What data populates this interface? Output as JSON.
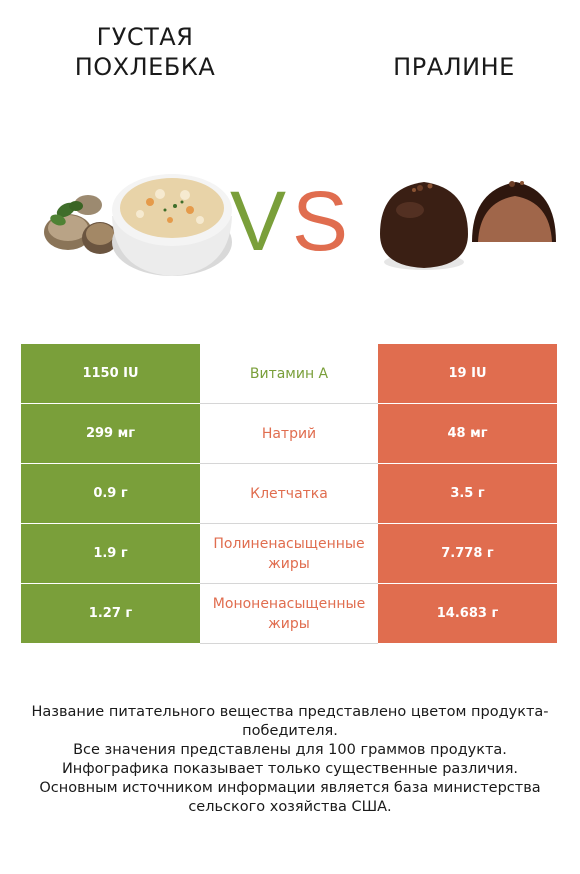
{
  "left_food": {
    "name": "ГУСТАЯ ПОХЛЕБКА"
  },
  "right_food": {
    "name": "ПРАЛИНЕ"
  },
  "vs": {
    "v": "V",
    "s": "S"
  },
  "colors": {
    "left": "#7a9f3a",
    "right": "#e06d4f"
  },
  "rows": [
    {
      "nutrient": "Витамин А",
      "left": "1150 IU",
      "right": "19 IU",
      "winner": "left"
    },
    {
      "nutrient": "Натрий",
      "left": "299 мг",
      "right": "48 мг",
      "winner": "right"
    },
    {
      "nutrient": "Клетчатка",
      "left": "0.9 г",
      "right": "3.5 г",
      "winner": "right"
    },
    {
      "nutrient": "Полиненасыщенные жиры",
      "left": "1.9 г",
      "right": "7.778 г",
      "winner": "right"
    },
    {
      "nutrient": "Мононенасыщенные жиры",
      "left": "1.27 г",
      "right": "14.683 г",
      "winner": "right"
    }
  ],
  "footer": [
    "Название питательного вещества представлено цветом продукта-победителя.",
    "Все значения представлены для 100 граммов продукта.",
    "Инфографика показывает только существенные различия.",
    "Основным источником информации является база министерства сельского хозяйства США."
  ]
}
